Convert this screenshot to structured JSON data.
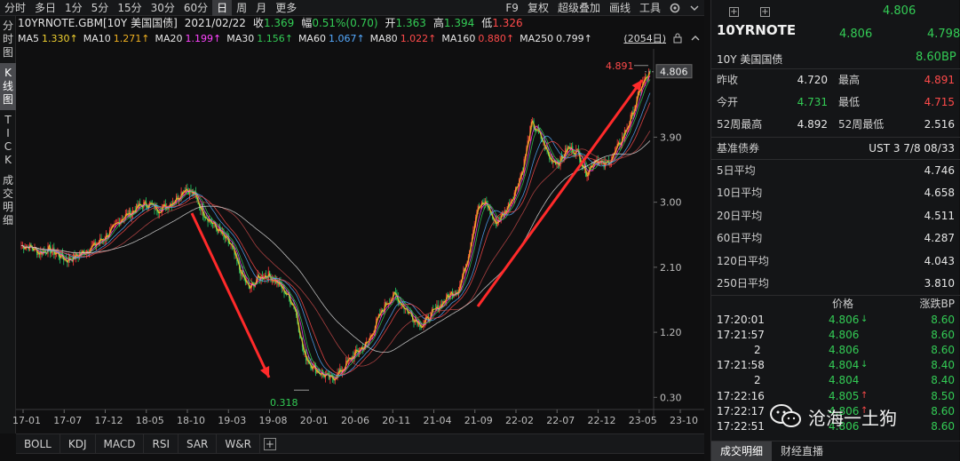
{
  "toolbar": {
    "timeframes": [
      "分时",
      "多日",
      "1分",
      "5分",
      "15分",
      "30分",
      "60分",
      "日",
      "周",
      "月",
      "更多"
    ],
    "active_timeframe": "日",
    "right_items": [
      "F9",
      "复权",
      "超级叠加",
      "画线",
      "工具"
    ]
  },
  "vtabs": [
    "分时图",
    "K线图",
    "TICK",
    "成交明细"
  ],
  "vtabs_active": "K线图",
  "info": {
    "symbol": "10YRNOTE.GBM[10Y 美国国债]",
    "date": "2021/02/22",
    "close_label": "收",
    "close": "1.369",
    "change_label": "幅",
    "change": "0.51%(0.70)",
    "open_label": "开",
    "open": "1.363",
    "high_label": "高",
    "high": "1.394",
    "low_label": "低",
    "low": "1.326"
  },
  "ma": [
    {
      "label": "MA5",
      "value": "1.330↑",
      "color": "#f2d230"
    },
    {
      "label": "MA10",
      "value": "1.271↑",
      "color": "#f0b020"
    },
    {
      "label": "MA20",
      "value": "1.199↑",
      "color": "#ff44ff"
    },
    {
      "label": "MA30",
      "value": "1.156↑",
      "color": "#33cc55"
    },
    {
      "label": "MA60",
      "value": "1.067↑",
      "color": "#55aaff"
    },
    {
      "label": "MA80",
      "value": "1.022↑",
      "color": "#ff4a4a"
    },
    {
      "label": "MA160",
      "value": "0.880↑",
      "color": "#ff4a4a"
    },
    {
      "label": "MA250",
      "value": "0.799↑",
      "color": "#e6e6e6"
    }
  ],
  "span_label": "(2054日)",
  "chart_data": {
    "type": "candlestick",
    "y_ticks": [
      "3.90",
      "3.00",
      "2.10",
      "1.20",
      "0.30"
    ],
    "y_tick_values": [
      3.9,
      3.0,
      2.1,
      1.2,
      0.3
    ],
    "ylim": [
      0.23,
      4.95
    ],
    "x_ticks": [
      "17-01",
      "17-07",
      "17-12",
      "18-05",
      "18-10",
      "19-03",
      "19-08",
      "20-01",
      "20-06",
      "20-11",
      "21-04",
      "21-09",
      "22-02",
      "22-07",
      "22-12",
      "23-05",
      "23-10"
    ],
    "close_series": [
      2.4,
      2.38,
      2.3,
      2.35,
      2.28,
      2.2,
      2.25,
      2.32,
      2.4,
      2.5,
      2.62,
      2.78,
      2.85,
      2.95,
      2.98,
      2.9,
      2.95,
      3.05,
      3.2,
      3.1,
      2.85,
      2.7,
      2.55,
      2.4,
      2.05,
      1.8,
      1.95,
      2.0,
      1.9,
      1.75,
      1.55,
      0.9,
      0.72,
      0.62,
      0.55,
      0.65,
      0.82,
      0.95,
      1.05,
      1.35,
      1.6,
      1.72,
      1.55,
      1.4,
      1.3,
      1.45,
      1.58,
      1.72,
      1.8,
      2.25,
      2.9,
      3.0,
      2.7,
      2.85,
      3.1,
      3.45,
      4.1,
      3.9,
      3.6,
      3.55,
      3.75,
      3.7,
      3.4,
      3.6,
      3.5,
      3.65,
      3.9,
      4.2,
      4.6,
      4.806
    ],
    "annotations": {
      "high": "4.891",
      "low": "0.318",
      "last": "4.806"
    }
  },
  "right": {
    "name": "10YRNOTE",
    "desc": "10Y 美国国债",
    "price_top": "4.806",
    "price_mid": "4.806",
    "price_mid2": "4.798",
    "bp": "8.60BP",
    "stats": [
      {
        "k1": "昨收",
        "v1": "4.720",
        "c1": "#e6e6e6",
        "k2": "最高",
        "v2": "4.891",
        "c2": "#ff4a4a"
      },
      {
        "k1": "今开",
        "v1": "4.731",
        "c1": "#33cc55",
        "k2": "最低",
        "v2": "4.715",
        "c2": "#ff4a4a"
      },
      {
        "k1": "52周最高",
        "v1": "4.892",
        "c1": "#e6e6e6",
        "k2": "52周最低",
        "v2": "2.516",
        "c2": "#e6e6e6"
      }
    ],
    "bond_label": "基准债券",
    "bond_value": "UST 3 7/8 08/33",
    "averages": [
      {
        "k": "5日平均",
        "v": "4.746"
      },
      {
        "k": "10日平均",
        "v": "4.658"
      },
      {
        "k": "20日平均",
        "v": "4.511"
      },
      {
        "k": "60日平均",
        "v": "4.287"
      },
      {
        "k": "120日平均",
        "v": "4.043"
      },
      {
        "k": "250日平均",
        "v": "3.810"
      }
    ],
    "trade_headers": [
      "价格",
      "涨跌BP"
    ],
    "trades": [
      {
        "time": "17:20:01",
        "price": "4.806",
        "arrow": "↓",
        "bp": "8.60"
      },
      {
        "time": "17:21:57",
        "price": "4.806",
        "arrow": "",
        "bp": "8.60"
      },
      {
        "time": "2",
        "price": "4.806",
        "arrow": "",
        "bp": "8.60"
      },
      {
        "time": "17:21:58",
        "price": "4.804",
        "arrow": "↓",
        "bp": "8.40"
      },
      {
        "time": "2",
        "price": "4.804",
        "arrow": "",
        "bp": "8.40"
      },
      {
        "time": "17:22:16",
        "price": "4.805",
        "arrow": "↑",
        "bp": "8.50"
      },
      {
        "time": "17:22:17",
        "price": "4.806",
        "arrow": "↑",
        "bp": "8.60"
      },
      {
        "time": "17:22:51",
        "price": "4.806",
        "arrow": "",
        "bp": "8.60"
      }
    ],
    "tabs": [
      "成交明细",
      "财经直播"
    ],
    "tab_active": "成交明细"
  },
  "watermark": "沧海一土狗",
  "indicators": [
    "BOLL",
    "KDJ",
    "MACD",
    "RSI",
    "SAR",
    "W&R"
  ]
}
